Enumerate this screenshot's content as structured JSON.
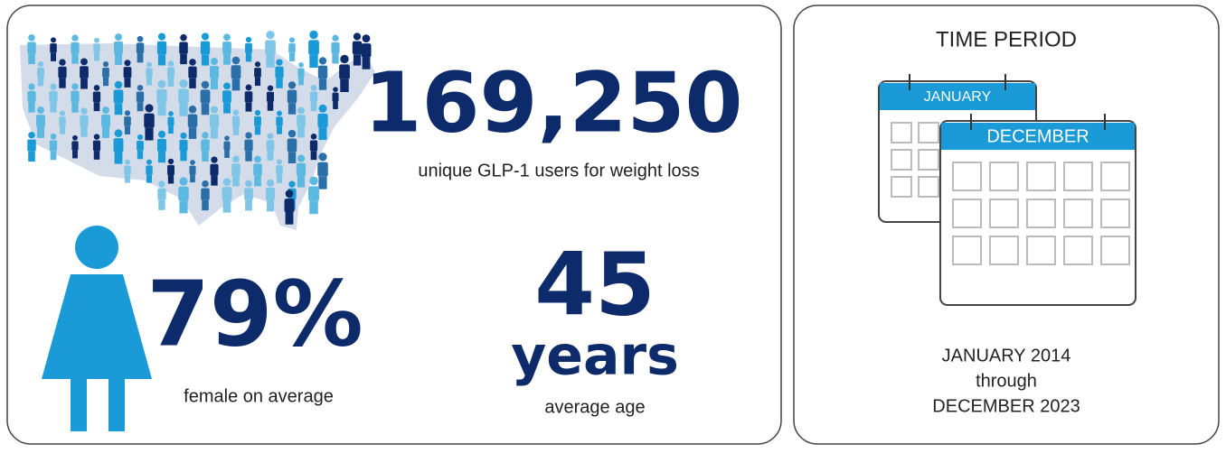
{
  "users": {
    "value": "169,250",
    "label": "unique GLP-1 users for weight loss"
  },
  "female": {
    "value": "79%",
    "label": "female on average"
  },
  "age": {
    "value": "45",
    "unit": "years",
    "label": "average age"
  },
  "time_period": {
    "title": "TIME PERIOD",
    "calendars": [
      "JANUARY",
      "DECEMBER"
    ],
    "start": "JANUARY 2014",
    "connector": "through",
    "end": "DECEMBER 2023"
  }
}
